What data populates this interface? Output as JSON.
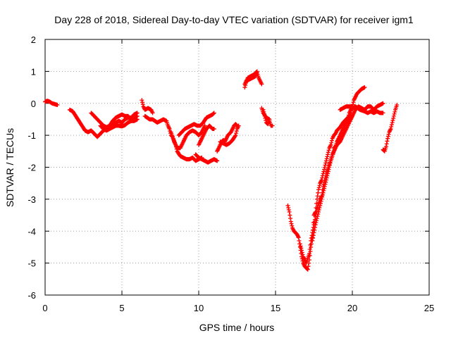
{
  "chart_data": {
    "type": "scatter",
    "title": "Day 228 of 2018, Sidereal Day-to-day VTEC variation (SDTVAR) for receiver igm1",
    "xlabel": "GPS time / hours",
    "ylabel": "SDTVAR / TECUs",
    "xlim": [
      0,
      25
    ],
    "ylim": [
      -6,
      2
    ],
    "x_ticks": [
      "0",
      "5",
      "10",
      "15",
      "20",
      "25"
    ],
    "y_ticks": [
      "-6",
      "-5",
      "-4",
      "-3",
      "-2",
      "-1",
      "0",
      "1",
      "2"
    ],
    "grid": true,
    "legend": "none",
    "marker": "plus",
    "color": "#ff0000",
    "segments": [
      [
        [
          0.0,
          0.05
        ],
        [
          0.15,
          0.08
        ],
        [
          0.3,
          0.05
        ],
        [
          0.45,
          0.0
        ],
        [
          0.6,
          -0.02
        ],
        [
          0.8,
          -0.05
        ]
      ],
      [
        [
          1.6,
          -0.2
        ],
        [
          1.8,
          -0.25
        ],
        [
          2.0,
          -0.4
        ],
        [
          2.2,
          -0.55
        ],
        [
          2.4,
          -0.7
        ],
        [
          2.6,
          -0.85
        ],
        [
          2.8,
          -0.9
        ],
        [
          3.0,
          -0.85
        ],
        [
          3.2,
          -0.95
        ],
        [
          3.4,
          -1.05
        ],
        [
          3.6,
          -0.95
        ],
        [
          3.8,
          -0.85
        ],
        [
          4.0,
          -0.8
        ],
        [
          4.2,
          -0.75
        ],
        [
          4.4,
          -0.65
        ],
        [
          4.6,
          -0.6
        ],
        [
          4.8,
          -0.55
        ],
        [
          5.0,
          -0.6
        ],
        [
          5.2,
          -0.5
        ],
        [
          5.4,
          -0.45
        ],
        [
          5.6,
          -0.45
        ],
        [
          5.8,
          -0.35
        ],
        [
          6.0,
          -0.3
        ]
      ],
      [
        [
          3.0,
          -0.3
        ],
        [
          3.2,
          -0.4
        ],
        [
          3.4,
          -0.5
        ],
        [
          3.6,
          -0.6
        ],
        [
          3.8,
          -0.7
        ],
        [
          4.0,
          -0.75
        ],
        [
          4.2,
          -0.7
        ],
        [
          4.4,
          -0.55
        ],
        [
          4.6,
          -0.45
        ],
        [
          4.8,
          -0.4
        ],
        [
          5.0,
          -0.35
        ],
        [
          5.2,
          -0.4
        ],
        [
          5.4,
          -0.4
        ],
        [
          5.6,
          -0.5
        ],
        [
          5.8,
          -0.45
        ],
        [
          6.0,
          -0.4
        ]
      ],
      [
        [
          3.6,
          -0.7
        ],
        [
          3.8,
          -0.8
        ],
        [
          4.0,
          -0.85
        ],
        [
          4.2,
          -0.8
        ],
        [
          4.4,
          -0.75
        ],
        [
          4.6,
          -0.7
        ],
        [
          4.8,
          -0.7
        ],
        [
          5.0,
          -0.72
        ],
        [
          5.2,
          -0.68
        ],
        [
          5.4,
          -0.6
        ],
        [
          5.6,
          -0.55
        ],
        [
          5.8,
          -0.55
        ],
        [
          6.0,
          -0.5
        ]
      ],
      [
        [
          6.3,
          0.1
        ],
        [
          6.4,
          -0.1
        ],
        [
          6.5,
          -0.2
        ],
        [
          6.7,
          -0.15
        ],
        [
          6.9,
          -0.2
        ],
        [
          7.0,
          -0.3
        ]
      ],
      [
        [
          6.5,
          -0.4
        ],
        [
          6.8,
          -0.5
        ],
        [
          7.0,
          -0.5
        ],
        [
          7.3,
          -0.6
        ],
        [
          7.5,
          -0.55
        ],
        [
          7.7,
          -0.5
        ],
        [
          7.9,
          -0.55
        ],
        [
          8.0,
          -0.7
        ],
        [
          8.1,
          -0.8
        ],
        [
          8.2,
          -1.0
        ],
        [
          8.3,
          -1.05
        ],
        [
          8.5,
          -1.3
        ],
        [
          8.6,
          -1.5
        ],
        [
          8.8,
          -1.65
        ],
        [
          9.0,
          -1.7
        ],
        [
          9.2,
          -1.75
        ],
        [
          9.4,
          -1.75
        ],
        [
          9.6,
          -1.7
        ],
        [
          9.8,
          -1.8
        ],
        [
          10.0,
          -1.75
        ],
        [
          10.2,
          -1.7
        ]
      ],
      [
        [
          8.2,
          -0.9
        ],
        [
          8.4,
          -1.2
        ],
        [
          8.6,
          -1.4
        ],
        [
          8.8,
          -1.4
        ],
        [
          9.0,
          -1.2
        ],
        [
          9.2,
          -1.0
        ],
        [
          9.4,
          -0.9
        ],
        [
          9.6,
          -0.85
        ],
        [
          9.8,
          -0.9
        ],
        [
          10.0,
          -1.0
        ],
        [
          10.2,
          -0.9
        ],
        [
          10.3,
          -0.8
        ],
        [
          10.4,
          -0.7
        ]
      ],
      [
        [
          8.7,
          -1.0
        ],
        [
          8.9,
          -0.9
        ],
        [
          9.1,
          -0.8
        ],
        [
          9.3,
          -0.75
        ],
        [
          9.5,
          -0.7
        ],
        [
          9.7,
          -0.65
        ],
        [
          9.9,
          -0.7
        ],
        [
          10.1,
          -0.7
        ],
        [
          10.3,
          -0.6
        ],
        [
          10.5,
          -0.45
        ],
        [
          10.7,
          -0.4
        ],
        [
          10.9,
          -0.35
        ],
        [
          11.0,
          -0.3
        ]
      ],
      [
        [
          10.0,
          -1.3
        ],
        [
          10.1,
          -1.2
        ],
        [
          10.2,
          -1.1
        ],
        [
          10.3,
          -1.0
        ],
        [
          10.4,
          -0.9
        ],
        [
          10.5,
          -0.8
        ],
        [
          10.6,
          -0.75
        ],
        [
          10.7,
          -0.7
        ],
        [
          10.8,
          -0.75
        ],
        [
          10.9,
          -0.8
        ],
        [
          11.0,
          -0.8
        ]
      ],
      [
        [
          9.8,
          -1.6
        ],
        [
          10.0,
          -1.7
        ],
        [
          10.2,
          -1.75
        ],
        [
          10.4,
          -1.8
        ],
        [
          10.6,
          -1.85
        ],
        [
          10.8,
          -1.8
        ],
        [
          11.0,
          -1.75
        ],
        [
          11.2,
          -1.8
        ]
      ],
      [
        [
          11.2,
          -1.5
        ],
        [
          11.3,
          -1.4
        ],
        [
          11.4,
          -1.3
        ],
        [
          11.5,
          -1.2
        ],
        [
          11.6,
          -1.15
        ],
        [
          11.7,
          -1.2
        ],
        [
          11.8,
          -1.1
        ],
        [
          11.9,
          -1.0
        ],
        [
          12.0,
          -0.95
        ],
        [
          12.1,
          -0.9
        ],
        [
          12.2,
          -0.8
        ],
        [
          12.3,
          -0.7
        ],
        [
          12.4,
          -0.65
        ],
        [
          12.5,
          -0.7
        ]
      ],
      [
        [
          11.4,
          -1.2
        ],
        [
          11.6,
          -1.25
        ],
        [
          11.8,
          -1.3
        ],
        [
          12.0,
          -1.25
        ],
        [
          12.2,
          -1.15
        ],
        [
          12.4,
          -1.0
        ],
        [
          12.5,
          -0.8
        ],
        [
          12.6,
          -0.7
        ]
      ],
      [
        [
          13.0,
          0.5
        ],
        [
          13.1,
          0.7
        ],
        [
          13.3,
          0.75
        ],
        [
          13.5,
          0.8
        ],
        [
          13.7,
          0.85
        ],
        [
          13.8,
          0.95
        ],
        [
          13.9,
          0.8
        ],
        [
          14.0,
          0.7
        ],
        [
          14.1,
          0.6
        ]
      ],
      [
        [
          13.0,
          0.6
        ],
        [
          13.2,
          0.8
        ],
        [
          13.4,
          0.85
        ],
        [
          13.6,
          0.9
        ],
        [
          13.8,
          1.0
        ]
      ],
      [
        [
          14.2,
          -0.2
        ],
        [
          14.3,
          -0.4
        ],
        [
          14.4,
          -0.6
        ],
        [
          14.5,
          -0.65
        ],
        [
          14.6,
          -0.55
        ],
        [
          14.7,
          -0.7
        ],
        [
          14.8,
          -0.7
        ]
      ],
      [
        [
          14.1,
          -0.15
        ],
        [
          14.2,
          -0.3
        ],
        [
          14.4,
          -0.45
        ],
        [
          14.6,
          -0.5
        ]
      ],
      [
        [
          15.8,
          -3.2
        ],
        [
          15.9,
          -3.4
        ],
        [
          16.0,
          -3.7
        ],
        [
          16.1,
          -3.9
        ],
        [
          16.2,
          -4.0
        ],
        [
          16.3,
          -4.05
        ],
        [
          16.4,
          -4.1
        ],
        [
          16.5,
          -4.2
        ],
        [
          16.6,
          -4.5
        ],
        [
          16.7,
          -4.8
        ],
        [
          16.8,
          -5.0
        ],
        [
          16.9,
          -5.1
        ],
        [
          17.0,
          -5.15
        ],
        [
          17.1,
          -5.2
        ],
        [
          17.2,
          -4.9
        ],
        [
          17.3,
          -4.5
        ],
        [
          17.4,
          -4.2
        ],
        [
          17.5,
          -3.5
        ],
        [
          17.6,
          -3.4
        ],
        [
          17.7,
          -3.0
        ],
        [
          17.8,
          -2.7
        ],
        [
          17.9,
          -2.5
        ],
        [
          18.0,
          -2.4
        ],
        [
          18.2,
          -2.0
        ],
        [
          18.3,
          -1.8
        ],
        [
          18.4,
          -1.6
        ],
        [
          18.5,
          -1.4
        ],
        [
          18.6,
          -1.3
        ],
        [
          18.7,
          -1.1
        ],
        [
          18.8,
          -1.0
        ],
        [
          18.9,
          -0.95
        ],
        [
          19.0,
          -0.85
        ],
        [
          19.2,
          -0.75
        ],
        [
          19.4,
          -0.6
        ],
        [
          19.6,
          -0.5
        ],
        [
          19.8,
          -0.4
        ],
        [
          19.9,
          -0.3
        ],
        [
          20.0,
          -0.1
        ],
        [
          20.1,
          0.1
        ],
        [
          20.2,
          0.2
        ],
        [
          20.3,
          0.3
        ],
        [
          20.5,
          0.4
        ],
        [
          20.6,
          0.45
        ],
        [
          20.8,
          0.5
        ]
      ],
      [
        [
          16.6,
          -4.4
        ],
        [
          16.8,
          -4.8
        ],
        [
          17.0,
          -5.0
        ],
        [
          17.2,
          -4.7
        ],
        [
          17.3,
          -4.3
        ],
        [
          17.5,
          -3.8
        ],
        [
          17.7,
          -3.3
        ],
        [
          17.9,
          -3.0
        ],
        [
          18.0,
          -2.9
        ],
        [
          18.1,
          -2.6
        ],
        [
          18.3,
          -2.2
        ],
        [
          18.5,
          -1.9
        ],
        [
          18.7,
          -1.6
        ],
        [
          18.9,
          -1.4
        ],
        [
          19.1,
          -1.2
        ],
        [
          19.3,
          -0.9
        ],
        [
          19.5,
          -0.7
        ],
        [
          19.7,
          -0.5
        ],
        [
          19.8,
          -0.3
        ],
        [
          19.9,
          -0.2
        ],
        [
          20.0,
          -0.15
        ],
        [
          20.2,
          -0.1
        ],
        [
          20.5,
          -0.2
        ],
        [
          20.8,
          -0.25
        ],
        [
          21.0,
          -0.3
        ],
        [
          21.2,
          -0.25
        ],
        [
          21.4,
          -0.3
        ],
        [
          21.6,
          -0.25
        ],
        [
          21.8,
          -0.3
        ],
        [
          22.0,
          -0.3
        ]
      ],
      [
        [
          17.4,
          -4.3
        ],
        [
          17.6,
          -3.8
        ],
        [
          17.8,
          -3.4
        ],
        [
          18.0,
          -3.0
        ],
        [
          18.2,
          -2.6
        ],
        [
          18.4,
          -2.2
        ],
        [
          18.6,
          -1.8
        ],
        [
          18.8,
          -1.5
        ],
        [
          19.0,
          -1.2
        ],
        [
          19.2,
          -1.0
        ],
        [
          19.4,
          -0.8
        ],
        [
          19.6,
          -0.6
        ],
        [
          19.8,
          -0.5
        ],
        [
          20.0,
          -0.4
        ]
      ],
      [
        [
          18.8,
          -1.4
        ],
        [
          19.0,
          -1.3
        ],
        [
          19.2,
          -1.2
        ],
        [
          19.4,
          -1.0
        ],
        [
          19.6,
          -0.8
        ],
        [
          19.8,
          -0.6
        ],
        [
          20.0,
          -0.4
        ],
        [
          20.2,
          -0.2
        ],
        [
          20.4,
          -0.1
        ],
        [
          20.6,
          -0.15
        ],
        [
          20.8,
          -0.2
        ],
        [
          21.0,
          -0.1
        ],
        [
          21.2,
          -0.1
        ],
        [
          21.4,
          -0.2
        ],
        [
          21.6,
          -0.1
        ],
        [
          21.8,
          -0.05
        ],
        [
          22.0,
          0.0
        ]
      ],
      [
        [
          19.2,
          -0.2
        ],
        [
          19.4,
          -0.15
        ],
        [
          19.6,
          -0.1
        ],
        [
          19.8,
          -0.1
        ],
        [
          20.0,
          -0.1
        ]
      ],
      [
        [
          22.0,
          -1.45
        ],
        [
          22.1,
          -1.5
        ],
        [
          22.2,
          -1.35
        ],
        [
          22.3,
          -1.1
        ],
        [
          22.4,
          -0.9
        ],
        [
          22.5,
          -0.8
        ],
        [
          22.6,
          -0.6
        ],
        [
          22.7,
          -0.4
        ],
        [
          22.8,
          -0.2
        ],
        [
          22.9,
          -0.05
        ]
      ]
    ]
  }
}
